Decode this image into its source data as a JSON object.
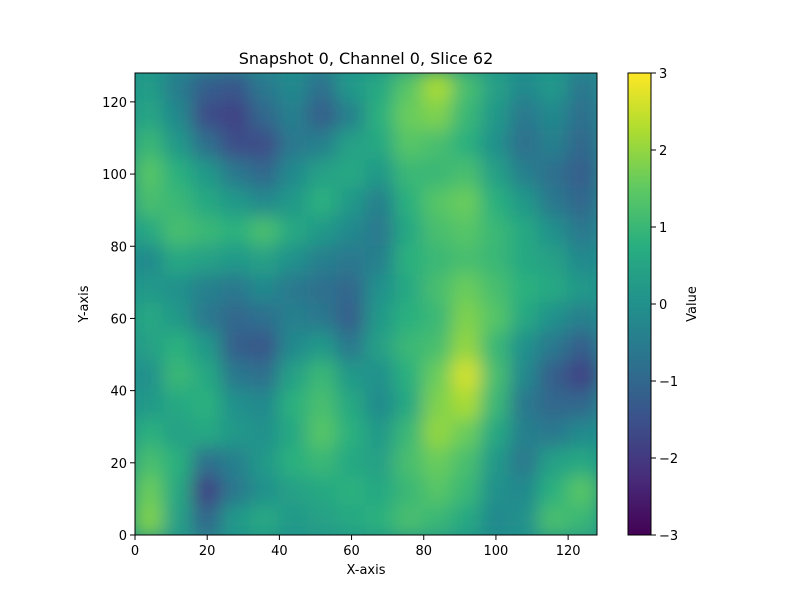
{
  "chart_data": {
    "type": "heatmap",
    "title": "Snapshot 0, Channel 0, Slice 62",
    "xlabel": "X-axis",
    "ylabel": "Y-axis",
    "xlim": [
      0,
      128
    ],
    "ylim": [
      0,
      128
    ],
    "x_ticks": [
      0,
      20,
      40,
      60,
      80,
      100,
      120
    ],
    "y_ticks": [
      0,
      20,
      40,
      60,
      80,
      100,
      120
    ],
    "grid": false,
    "colormap": "viridis",
    "colorbar": {
      "label": "Value",
      "range": [
        -3,
        3
      ],
      "ticks": [
        3,
        2,
        1,
        0,
        -1,
        -2,
        -3
      ],
      "tick_labels": [
        "3",
        "2",
        "1",
        "0",
        "−1",
        "−2",
        "−3"
      ]
    },
    "value_field": {
      "description": "approximate coarse field values (rows from y=128 top to y=0 bottom, 16x16 grid)",
      "rows": [
        [
          0.3,
          -0.5,
          -1.2,
          -1.4,
          -0.6,
          -0.2,
          -0.8,
          0.2,
          0.6,
          1.4,
          2.2,
          1.2,
          0.4,
          -0.2,
          0.2,
          -0.6
        ],
        [
          0.5,
          -0.2,
          -1.6,
          -1.8,
          -1.0,
          -0.4,
          -1.2,
          -0.4,
          0.8,
          1.6,
          1.8,
          1.0,
          0.2,
          -0.6,
          -0.2,
          -0.8
        ],
        [
          1.0,
          0.2,
          -0.8,
          -1.6,
          -1.6,
          -0.6,
          -0.4,
          0.4,
          0.6,
          1.4,
          1.2,
          0.8,
          0.0,
          -0.8,
          -0.4,
          -1.0
        ],
        [
          1.4,
          0.8,
          0.2,
          -0.6,
          -1.0,
          -0.2,
          0.4,
          0.6,
          0.2,
          1.0,
          1.0,
          1.2,
          0.4,
          -0.4,
          -0.8,
          -1.2
        ],
        [
          1.2,
          1.0,
          0.6,
          0.2,
          -0.2,
          0.2,
          0.8,
          0.2,
          -0.4,
          0.8,
          1.4,
          1.6,
          0.8,
          0.2,
          -0.6,
          -1.0
        ],
        [
          0.6,
          1.2,
          1.0,
          0.8,
          1.2,
          0.6,
          0.2,
          -0.2,
          -0.6,
          0.6,
          1.2,
          1.4,
          1.0,
          0.6,
          0.0,
          -0.6
        ],
        [
          -0.2,
          0.6,
          0.4,
          0.2,
          0.4,
          0.0,
          -0.4,
          -0.6,
          -0.4,
          0.8,
          1.0,
          1.2,
          1.0,
          0.6,
          0.4,
          -0.2
        ],
        [
          0.2,
          0.0,
          -0.4,
          -0.6,
          -0.2,
          -0.6,
          -0.8,
          -1.0,
          0.0,
          0.6,
          1.2,
          1.6,
          1.2,
          0.8,
          0.6,
          0.2
        ],
        [
          0.6,
          0.2,
          -0.6,
          -1.0,
          -0.8,
          -0.4,
          -0.6,
          -1.2,
          0.2,
          0.8,
          1.0,
          1.8,
          1.4,
          0.6,
          0.0,
          -0.4
        ],
        [
          0.4,
          0.8,
          0.2,
          -1.2,
          -1.4,
          -0.2,
          0.2,
          -0.6,
          0.4,
          1.0,
          1.2,
          2.0,
          1.0,
          0.0,
          -0.6,
          -1.2
        ],
        [
          0.0,
          1.0,
          0.6,
          -0.6,
          -0.8,
          0.4,
          1.0,
          0.2,
          0.0,
          0.8,
          1.6,
          2.6,
          1.2,
          -0.2,
          -1.2,
          -1.8
        ],
        [
          0.2,
          0.6,
          0.8,
          0.0,
          -0.2,
          0.8,
          1.2,
          0.6,
          -0.2,
          0.6,
          1.8,
          2.2,
          1.0,
          -0.6,
          -1.0,
          -1.0
        ],
        [
          0.8,
          0.4,
          0.6,
          0.2,
          0.0,
          0.6,
          1.4,
          0.8,
          0.2,
          1.0,
          2.0,
          1.6,
          0.6,
          -0.4,
          -0.6,
          -0.2
        ],
        [
          1.2,
          0.8,
          -0.8,
          -0.4,
          0.2,
          0.8,
          1.0,
          0.6,
          0.4,
          1.2,
          1.6,
          1.2,
          0.2,
          -0.6,
          0.4,
          0.6
        ],
        [
          1.6,
          0.6,
          -1.8,
          -0.6,
          0.0,
          0.4,
          0.6,
          0.8,
          0.6,
          1.0,
          1.4,
          1.0,
          0.0,
          -0.2,
          0.8,
          1.4
        ],
        [
          1.8,
          0.4,
          -1.0,
          0.2,
          0.6,
          0.2,
          0.4,
          0.6,
          0.8,
          1.2,
          1.0,
          0.6,
          -0.2,
          0.0,
          1.2,
          1.0
        ]
      ]
    }
  }
}
